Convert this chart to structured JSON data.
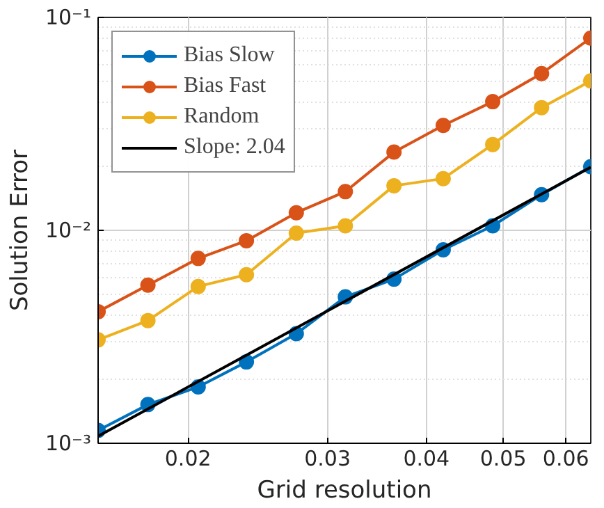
{
  "chart_data": {
    "type": "line",
    "xlabel": "Grid resolution",
    "ylabel": "Solution Error",
    "x": [
      0.0154,
      0.0178,
      0.0206,
      0.0237,
      0.0274,
      0.0316,
      0.0364,
      0.042,
      0.0485,
      0.0559,
      0.0645
    ],
    "series": [
      {
        "name": "Bias Slow",
        "color": "#0072bd",
        "values": [
          0.00115,
          0.00152,
          0.00184,
          0.00241,
          0.00327,
          0.00487,
          0.0059,
          0.0081,
          0.0105,
          0.0147,
          0.0199
        ]
      },
      {
        "name": "Bias Fast",
        "color": "#d95319",
        "values": [
          0.00415,
          0.00553,
          0.00738,
          0.00894,
          0.0121,
          0.0152,
          0.0233,
          0.0311,
          0.0402,
          0.0545,
          0.08
        ]
      },
      {
        "name": "Random",
        "color": "#edb120",
        "values": [
          0.00306,
          0.00377,
          0.00545,
          0.00619,
          0.0097,
          0.0105,
          0.0162,
          0.0175,
          0.0253,
          0.0377,
          0.0503
        ]
      },
      {
        "name": "Slope: 2.04",
        "color": "#000000",
        "marker": "none",
        "x": [
          0.0154,
          0.0645
        ],
        "values": [
          0.00108,
          0.0198
        ]
      }
    ],
    "log": "xy",
    "xlim": [
      0.0154,
      0.0645
    ],
    "ylim": [
      0.001,
      0.1
    ],
    "xticks": [
      0.02,
      0.03,
      0.04,
      0.05,
      0.06
    ],
    "yticks": [
      {
        "value": 0.001,
        "label": "10⁻³"
      },
      {
        "value": 0.01,
        "label": "10⁻²"
      },
      {
        "value": 0.1,
        "label": "10⁻¹"
      }
    ],
    "grid": true,
    "legend": "top left",
    "marker": "circle"
  }
}
